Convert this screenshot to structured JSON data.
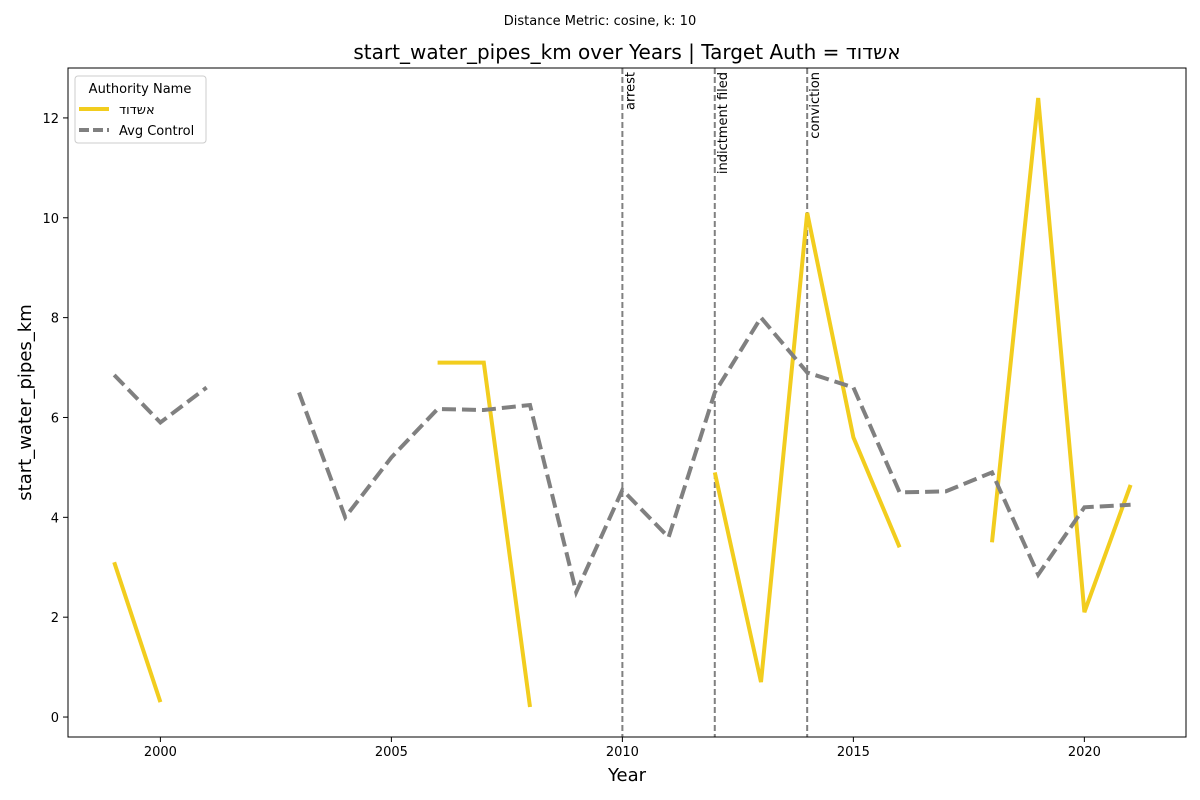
{
  "suptitle": "Distance Metric: cosine, k: 10",
  "chart_data": {
    "type": "line",
    "title": "start_water_pipes_km over Years | Target Auth = אשדוד",
    "xlabel": "Year",
    "ylabel": "start_water_pipes_km",
    "xlim": [
      1998.0,
      2022.2
    ],
    "ylim": [
      -0.4,
      13.0
    ],
    "xticks": [
      2000,
      2005,
      2010,
      2015,
      2020
    ],
    "yticks": [
      0,
      2,
      4,
      6,
      8,
      10,
      12
    ],
    "legend": {
      "title": "Authority Name",
      "position": "upper left"
    },
    "series": [
      {
        "name": "אשדוד",
        "color": "#f2cd1e",
        "style": "solid",
        "points": [
          [
            1999,
            3.1
          ],
          [
            2000,
            0.3
          ],
          [
            2001,
            null
          ],
          [
            2002,
            null
          ],
          [
            2003,
            null
          ],
          [
            2004,
            null
          ],
          [
            2005,
            null
          ],
          [
            2006,
            7.1
          ],
          [
            2007,
            7.1
          ],
          [
            2008,
            0.2
          ],
          [
            2009,
            null
          ],
          [
            2010,
            null
          ],
          [
            2011,
            null
          ],
          [
            2012,
            4.9
          ],
          [
            2013,
            0.7
          ],
          [
            2014,
            10.1
          ],
          [
            2015,
            5.6
          ],
          [
            2016,
            3.4
          ],
          [
            2017,
            null
          ],
          [
            2018,
            3.5
          ],
          [
            2019,
            12.4
          ],
          [
            2020,
            2.1
          ],
          [
            2021,
            4.65
          ]
        ]
      },
      {
        "name": "Avg Control",
        "color": "#808080",
        "style": "dashed",
        "points": [
          [
            1999,
            6.85
          ],
          [
            2000,
            5.9
          ],
          [
            2001,
            6.6
          ],
          [
            2002,
            null
          ],
          [
            2003,
            6.5
          ],
          [
            2004,
            4.0
          ],
          [
            2005,
            5.2
          ],
          [
            2006,
            6.17
          ],
          [
            2007,
            6.15
          ],
          [
            2008,
            6.25
          ],
          [
            2009,
            2.5
          ],
          [
            2010,
            4.55
          ],
          [
            2011,
            3.6
          ],
          [
            2012,
            6.5
          ],
          [
            2013,
            8.0
          ],
          [
            2014,
            6.9
          ],
          [
            2015,
            6.6
          ],
          [
            2016,
            4.5
          ],
          [
            2017,
            4.52
          ],
          [
            2018,
            4.9
          ],
          [
            2019,
            2.85
          ],
          [
            2020,
            4.2
          ],
          [
            2021,
            4.25
          ]
        ]
      }
    ],
    "events": [
      {
        "x": 2010,
        "label": "arrest"
      },
      {
        "x": 2012,
        "label": "indictment filed"
      },
      {
        "x": 2014,
        "label": "conviction"
      }
    ]
  }
}
